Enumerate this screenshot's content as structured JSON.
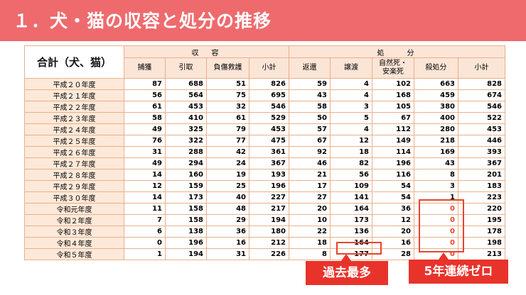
{
  "title": "１．犬・猫の収容と処分の推移",
  "table": {
    "corner_label": "合計（犬、猫）",
    "groups": [
      "収　容",
      "処　　分"
    ],
    "columns": [
      "捕獲",
      "引取",
      "負傷救護",
      "小計",
      "返還",
      "譲渡",
      "自然死・\n安楽死",
      "殺処分",
      "小計"
    ],
    "rows": [
      {
        "label": "平成２０年度",
        "values": [
          "87",
          "688",
          "51",
          "826",
          "59",
          "4",
          "102",
          "663",
          "828"
        ]
      },
      {
        "label": "平成２１年度",
        "values": [
          "56",
          "564",
          "75",
          "695",
          "43",
          "4",
          "168",
          "459",
          "674"
        ]
      },
      {
        "label": "平成２２年度",
        "values": [
          "61",
          "453",
          "32",
          "546",
          "58",
          "3",
          "105",
          "380",
          "546"
        ]
      },
      {
        "label": "平成２３年度",
        "values": [
          "58",
          "410",
          "61",
          "529",
          "50",
          "5",
          "67",
          "400",
          "522"
        ]
      },
      {
        "label": "平成２４年度",
        "values": [
          "49",
          "325",
          "79",
          "453",
          "57",
          "4",
          "112",
          "280",
          "453"
        ]
      },
      {
        "label": "平成２５年度",
        "values": [
          "76",
          "322",
          "77",
          "475",
          "67",
          "12",
          "149",
          "218",
          "446"
        ]
      },
      {
        "label": "平成２６年度",
        "values": [
          "31",
          "288",
          "42",
          "361",
          "92",
          "18",
          "114",
          "169",
          "393"
        ]
      },
      {
        "label": "平成２７年度",
        "values": [
          "49",
          "294",
          "24",
          "367",
          "46",
          "82",
          "196",
          "43",
          "367"
        ]
      },
      {
        "label": "平成２８年度",
        "values": [
          "14",
          "160",
          "19",
          "193",
          "21",
          "56",
          "116",
          "8",
          "201"
        ]
      },
      {
        "label": "平成２９年度",
        "values": [
          "12",
          "159",
          "25",
          "196",
          "17",
          "109",
          "54",
          "3",
          "183"
        ]
      },
      {
        "label": "平成３０年度",
        "values": [
          "14",
          "173",
          "40",
          "227",
          "27",
          "141",
          "54",
          "1",
          "223"
        ]
      },
      {
        "label": "令和元年度",
        "values": [
          "11",
          "158",
          "48",
          "217",
          "20",
          "164",
          "36",
          "0",
          "220"
        ]
      },
      {
        "label": "令和２年度",
        "values": [
          "7",
          "158",
          "29",
          "194",
          "10",
          "173",
          "12",
          "0",
          "195"
        ]
      },
      {
        "label": "令和３年度",
        "values": [
          "6",
          "138",
          "36",
          "180",
          "22",
          "136",
          "20",
          "0",
          "178"
        ]
      },
      {
        "label": "令和４年度",
        "values": [
          "0",
          "196",
          "16",
          "212",
          "18",
          "164",
          "16",
          "0",
          "198"
        ]
      },
      {
        "label": "令和５年度",
        "values": [
          "1",
          "194",
          "31",
          "226",
          "8",
          "177",
          "28",
          "0",
          "213"
        ]
      }
    ]
  },
  "callouts": {
    "max_label": "過去最多",
    "zero_label": "5年連続ゼロ"
  },
  "colors": {
    "banner": "#ee6a6d",
    "header_fill": "#fbe5d6",
    "accent_red": "#e8332b"
  }
}
